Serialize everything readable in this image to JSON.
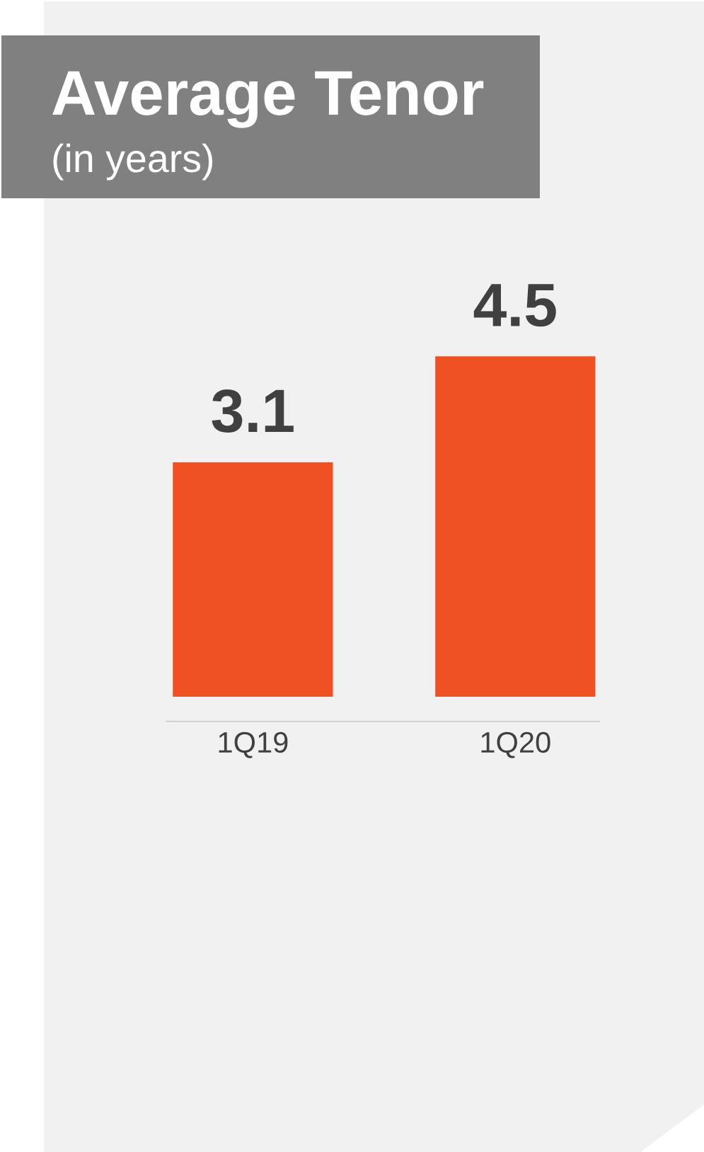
{
  "chart_data": {
    "type": "bar",
    "title": "Average Tenor",
    "subtitle": "(in years)",
    "categories": [
      "1Q19",
      "1Q20"
    ],
    "values": [
      3.1,
      4.5
    ],
    "color": "#f05123",
    "data_labels": true,
    "grid": false,
    "legend": false
  }
}
